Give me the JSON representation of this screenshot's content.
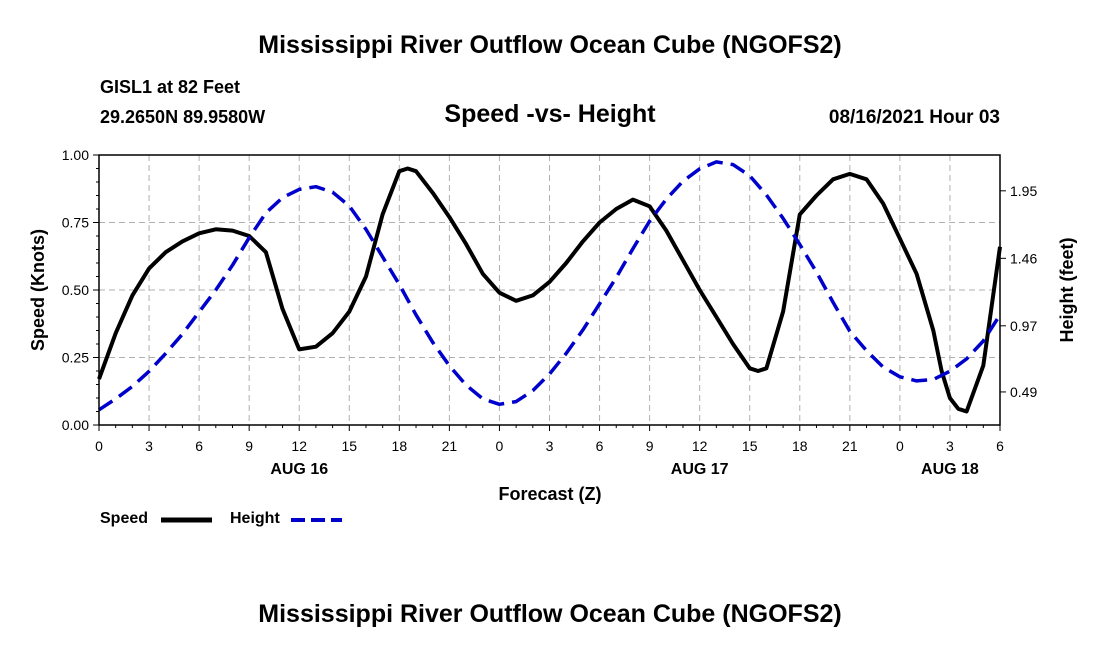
{
  "header": {
    "title": "Mississippi River Outflow Ocean Cube (NGOFS2)",
    "station": "GISL1 at 82 Feet",
    "coords": "29.2650N  89.9580W",
    "subtitle": "Speed -vs- Height",
    "datetime": "08/16/2021 Hour 03"
  },
  "footer": {
    "title": "Mississippi River Outflow Ocean Cube (NGOFS2)"
  },
  "legend": {
    "speed_label": "Speed",
    "height_label": "Height"
  },
  "colors": {
    "speed": "#000000",
    "height": "#0000cc",
    "grid": "#b0b0b0"
  },
  "chart_data": {
    "type": "line",
    "title": "Speed -vs- Height",
    "xlabel": "Forecast (Z)",
    "ylabel": "Speed (Knots)",
    "y2label": "Height (feet)",
    "xlim": [
      0,
      54
    ],
    "ylim": [
      0,
      1.0
    ],
    "y2lim": [
      0.25,
      2.21
    ],
    "grid": true,
    "legend_position": "bottom-left",
    "x_tick_labels": [
      "0",
      "3",
      "6",
      "9",
      "12",
      "15",
      "18",
      "21",
      "0",
      "3",
      "6",
      "9",
      "12",
      "15",
      "18",
      "21",
      "0",
      "3",
      "6"
    ],
    "x_tick_values": [
      0,
      3,
      6,
      9,
      12,
      15,
      18,
      21,
      24,
      27,
      30,
      33,
      36,
      39,
      42,
      45,
      48,
      51,
      54
    ],
    "date_labels": [
      {
        "text": "AUG 16",
        "x": 12
      },
      {
        "text": "AUG 17",
        "x": 36
      },
      {
        "text": "AUG 18",
        "x": 51
      }
    ],
    "y_ticks": [
      {
        "value": 0.0,
        "label": "0.00"
      },
      {
        "value": 0.25,
        "label": "0.25"
      },
      {
        "value": 0.5,
        "label": "0.50"
      },
      {
        "value": 0.75,
        "label": "0.75"
      },
      {
        "value": 1.0,
        "label": "1.00"
      }
    ],
    "y2_ticks": [
      {
        "value": 0.49,
        "label": "0.49"
      },
      {
        "value": 0.97,
        "label": "0.97"
      },
      {
        "value": 1.46,
        "label": "1.46"
      },
      {
        "value": 1.95,
        "label": "1.95"
      }
    ],
    "series": [
      {
        "name": "Speed",
        "axis": "left",
        "style": "solid",
        "x": [
          0,
          1,
          2,
          3,
          4,
          5,
          6,
          7,
          8,
          9,
          10,
          11,
          12,
          13,
          14,
          15,
          16,
          17,
          18,
          18.5,
          19,
          20,
          21,
          22,
          23,
          24,
          25,
          26,
          27,
          28,
          29,
          30,
          31,
          32,
          33,
          34,
          35,
          36,
          37,
          38,
          39,
          39.5,
          40,
          41,
          42,
          43,
          44,
          45,
          46,
          47,
          48,
          49,
          50,
          50.5,
          51,
          51.5,
          52,
          53,
          54
        ],
        "values": [
          0.17,
          0.34,
          0.48,
          0.58,
          0.64,
          0.68,
          0.71,
          0.725,
          0.72,
          0.7,
          0.64,
          0.43,
          0.28,
          0.29,
          0.34,
          0.42,
          0.55,
          0.78,
          0.94,
          0.95,
          0.94,
          0.86,
          0.77,
          0.67,
          0.56,
          0.49,
          0.46,
          0.48,
          0.53,
          0.6,
          0.68,
          0.75,
          0.8,
          0.835,
          0.81,
          0.72,
          0.61,
          0.5,
          0.4,
          0.3,
          0.21,
          0.2,
          0.21,
          0.42,
          0.78,
          0.85,
          0.91,
          0.93,
          0.91,
          0.82,
          0.69,
          0.56,
          0.35,
          0.2,
          0.1,
          0.06,
          0.05,
          0.22,
          0.66
        ]
      },
      {
        "name": "Height",
        "axis": "right",
        "style": "dashed",
        "x": [
          0,
          1,
          2,
          3,
          4,
          5,
          6,
          7,
          8,
          9,
          10,
          11,
          12,
          13,
          14,
          15,
          16,
          17,
          18,
          19,
          20,
          21,
          22,
          23,
          24,
          25,
          26,
          27,
          28,
          29,
          30,
          31,
          32,
          33,
          34,
          35,
          36,
          37,
          38,
          39,
          40,
          41,
          42,
          43,
          44,
          45,
          46,
          47,
          48,
          49,
          50,
          51,
          52,
          53,
          54
        ],
        "values": [
          0.36,
          0.44,
          0.53,
          0.64,
          0.77,
          0.91,
          1.07,
          1.23,
          1.41,
          1.61,
          1.79,
          1.9,
          1.96,
          1.98,
          1.94,
          1.84,
          1.67,
          1.47,
          1.27,
          1.05,
          0.85,
          0.68,
          0.54,
          0.44,
          0.4,
          0.42,
          0.5,
          0.62,
          0.77,
          0.94,
          1.13,
          1.32,
          1.53,
          1.73,
          1.89,
          2.02,
          2.11,
          2.16,
          2.14,
          2.06,
          1.92,
          1.75,
          1.56,
          1.36,
          1.14,
          0.93,
          0.79,
          0.67,
          0.6,
          0.57,
          0.58,
          0.64,
          0.73,
          0.86,
          1.05
        ]
      }
    ]
  }
}
